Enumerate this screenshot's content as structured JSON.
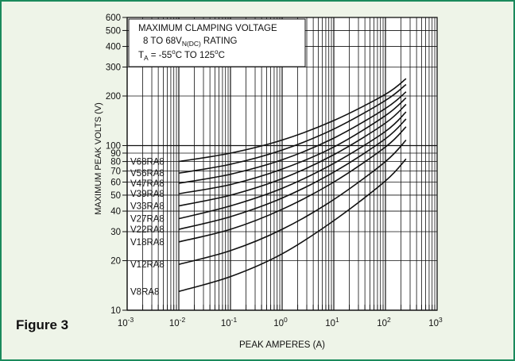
{
  "figure_label": "Figure 3",
  "colors": {
    "frame_border": "#1a8a5c",
    "frame_bg": "#eef4e8",
    "plot_bg": "#ffffff",
    "ink": "#111111"
  },
  "chart_data": {
    "type": "line",
    "title_lines": [
      "MAXIMUM CLAMPING VOLTAGE",
      "8 TO 68V",
      "N(DC)",
      "RATING",
      "T",
      "A",
      "= -55",
      "o",
      "C TO 125",
      "o",
      "C"
    ],
    "title_line1": "MAXIMUM CLAMPING VOLTAGE",
    "title_line2_a": "8 TO 68V",
    "title_line2_sub": "N(DC)",
    "title_line2_b": "RATING",
    "title_line3_a": "T",
    "title_line3_sub": "A",
    "title_line3_b": "= -55",
    "title_line3_sup1": "o",
    "title_line3_c": "C TO 125",
    "title_line3_sup2": "o",
    "title_line3_d": "C",
    "xlabel": "PEAK AMPERES (A)",
    "ylabel": "MAXIMUM PEAK VOLTS (V)",
    "x_scale": "log",
    "y_scale": "log",
    "xlim": [
      0.001,
      1000
    ],
    "ylim": [
      10,
      600
    ],
    "x_ticks": [
      {
        "value": 0.001,
        "base": "10",
        "exp": "-3"
      },
      {
        "value": 0.01,
        "base": "10",
        "exp": "-2"
      },
      {
        "value": 0.1,
        "base": "10",
        "exp": "-1"
      },
      {
        "value": 1,
        "base": "10",
        "exp": "0"
      },
      {
        "value": 10,
        "base": "10",
        "exp": "1"
      },
      {
        "value": 100,
        "base": "10",
        "exp": "2"
      },
      {
        "value": 1000,
        "base": "10",
        "exp": "3"
      }
    ],
    "y_ticks": [
      {
        "value": 10,
        "label": "10"
      },
      {
        "value": 20,
        "label": "20"
      },
      {
        "value": 30,
        "label": "30"
      },
      {
        "value": 40,
        "label": "40"
      },
      {
        "value": 50,
        "label": "50"
      },
      {
        "value": 60,
        "label": "60"
      },
      {
        "value": 70,
        "label": "70"
      },
      {
        "value": 80,
        "label": "80"
      },
      {
        "value": 90,
        "label": "90"
      },
      {
        "value": 100,
        "label": "100"
      },
      {
        "value": 200,
        "label": "200"
      },
      {
        "value": 300,
        "label": "300"
      },
      {
        "value": 400,
        "label": "400"
      },
      {
        "value": 500,
        "label": "500"
      },
      {
        "value": 600,
        "label": "600"
      }
    ],
    "grid": true,
    "series": [
      {
        "name": "V68RA8",
        "x": [
          0.01,
          0.1,
          1,
          10,
          100,
          250
        ],
        "y": [
          80,
          90,
          108,
          142,
          205,
          255
        ]
      },
      {
        "name": "V56RA8",
        "x": [
          0.01,
          0.1,
          1,
          10,
          100,
          250
        ],
        "y": [
          68,
          77,
          94,
          126,
          188,
          235
        ]
      },
      {
        "name": "V47RA8",
        "x": [
          0.01,
          0.1,
          1,
          10,
          100,
          250
        ],
        "y": [
          59,
          67,
          82,
          111,
          168,
          212
        ]
      },
      {
        "name": "V39RA8",
        "x": [
          0.01,
          0.1,
          1,
          10,
          100,
          250
        ],
        "y": [
          51,
          58,
          72,
          98,
          152,
          195
        ]
      },
      {
        "name": "V33RA8",
        "x": [
          0.01,
          0.1,
          1,
          10,
          100,
          250
        ],
        "y": [
          43,
          50,
          63,
          88,
          137,
          178
        ]
      },
      {
        "name": "V27RA8",
        "x": [
          0.01,
          0.1,
          1,
          10,
          100,
          250
        ],
        "y": [
          36,
          43,
          55,
          78,
          122,
          160
        ]
      },
      {
        "name": "V22RA8",
        "x": [
          0.01,
          0.1,
          1,
          10,
          100,
          250
        ],
        "y": [
          31,
          37,
          48,
          69,
          110,
          145
        ]
      },
      {
        "name": "V18RA8",
        "x": [
          0.01,
          0.1,
          1,
          10,
          100,
          250
        ],
        "y": [
          26,
          31,
          41,
          60,
          98,
          130
        ]
      },
      {
        "name": "V12RA8",
        "x": [
          0.01,
          0.1,
          1,
          10,
          100,
          250
        ],
        "y": [
          19,
          23,
          31,
          47,
          80,
          108
        ]
      },
      {
        "name": "V8RA8",
        "x": [
          0.01,
          0.1,
          1,
          10,
          100,
          250
        ],
        "y": [
          13,
          16,
          22,
          35,
          61,
          83
        ]
      }
    ]
  }
}
